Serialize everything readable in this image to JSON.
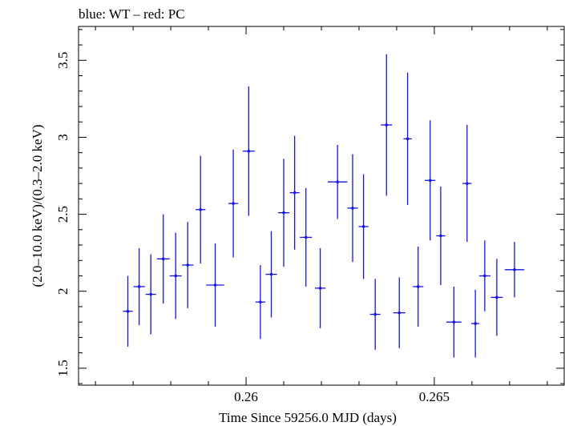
{
  "chart_data": {
    "type": "scatter",
    "title": "blue: WT – red: PC",
    "xlabel": "Time Since 59256.0 MJD (days)",
    "ylabel": "(2.0–10.0 keV)/(0.3–2.0 keV)",
    "xlim": [
      0.25555,
      0.26845
    ],
    "ylim": [
      1.39,
      3.72
    ],
    "xticks": [
      {
        "value": 0.26,
        "label": "0.26"
      },
      {
        "value": 0.265,
        "label": "0.265"
      }
    ],
    "xminor": [
      0.256,
      0.257,
      0.258,
      0.259,
      0.261,
      0.262,
      0.263,
      0.264,
      0.266,
      0.267,
      0.268
    ],
    "yticks": [
      {
        "value": 1.5,
        "label": "1.5"
      },
      {
        "value": 2,
        "label": "2"
      },
      {
        "value": 2.5,
        "label": "2.5"
      },
      {
        "value": 3,
        "label": "3"
      },
      {
        "value": 3.5,
        "label": "3.5"
      }
    ],
    "yminor_step": 0.1,
    "grid": false,
    "series": [
      {
        "color": "#1414e6",
        "points": [
          {
            "x": 0.25686,
            "xerr": 0.00013,
            "y": 1.87,
            "yerr": [
              0.23,
              0.23
            ]
          },
          {
            "x": 0.25716,
            "xerr": 0.00015,
            "y": 2.03,
            "yerr": [
              0.25,
              0.25
            ]
          },
          {
            "x": 0.25747,
            "xerr": 0.00014,
            "y": 1.98,
            "yerr": [
              0.26,
              0.26
            ]
          },
          {
            "x": 0.2578,
            "xerr": 0.00017,
            "y": 2.21,
            "yerr": [
              0.29,
              0.29
            ]
          },
          {
            "x": 0.25813,
            "xerr": 0.00016,
            "y": 2.1,
            "yerr": [
              0.28,
              0.28
            ]
          },
          {
            "x": 0.25845,
            "xerr": 0.00015,
            "y": 2.17,
            "yerr": [
              0.28,
              0.28
            ]
          },
          {
            "x": 0.25879,
            "xerr": 0.00013,
            "y": 2.53,
            "yerr": [
              0.35,
              0.35
            ]
          },
          {
            "x": 0.25918,
            "xerr": 0.00024,
            "y": 2.04,
            "yerr": [
              0.27,
              0.27
            ]
          },
          {
            "x": 0.25966,
            "xerr": 0.00013,
            "y": 2.57,
            "yerr": [
              0.35,
              0.35
            ]
          },
          {
            "x": 0.26007,
            "xerr": 0.00016,
            "y": 2.91,
            "yerr": [
              0.42,
              0.42
            ]
          },
          {
            "x": 0.26038,
            "xerr": 0.00013,
            "y": 1.93,
            "yerr": [
              0.24,
              0.24
            ]
          },
          {
            "x": 0.26067,
            "xerr": 0.00015,
            "y": 2.11,
            "yerr": [
              0.28,
              0.28
            ]
          },
          {
            "x": 0.261,
            "xerr": 0.00015,
            "y": 2.51,
            "yerr": [
              0.35,
              0.35
            ]
          },
          {
            "x": 0.26129,
            "xerr": 0.00013,
            "y": 2.64,
            "yerr": [
              0.37,
              0.37
            ]
          },
          {
            "x": 0.26159,
            "xerr": 0.00016,
            "y": 2.35,
            "yerr": [
              0.32,
              0.32
            ]
          },
          {
            "x": 0.26197,
            "xerr": 0.00014,
            "y": 2.02,
            "yerr": [
              0.26,
              0.26
            ]
          },
          {
            "x": 0.26243,
            "xerr": 0.00026,
            "y": 2.71,
            "yerr": [
              0.24,
              0.24
            ]
          },
          {
            "x": 0.26283,
            "xerr": 0.00014,
            "y": 2.54,
            "yerr": [
              0.35,
              0.35
            ]
          },
          {
            "x": 0.26312,
            "xerr": 0.00013,
            "y": 2.42,
            "yerr": [
              0.34,
              0.34
            ]
          },
          {
            "x": 0.26343,
            "xerr": 0.00014,
            "y": 1.85,
            "yerr": [
              0.23,
              0.23
            ]
          },
          {
            "x": 0.26373,
            "xerr": 0.00015,
            "y": 3.08,
            "yerr": [
              0.46,
              0.46
            ]
          },
          {
            "x": 0.26407,
            "xerr": 0.00016,
            "y": 1.86,
            "yerr": [
              0.23,
              0.23
            ]
          },
          {
            "x": 0.26429,
            "xerr": 0.00011,
            "y": 2.99,
            "yerr": [
              0.43,
              0.43
            ]
          },
          {
            "x": 0.26457,
            "xerr": 0.00014,
            "y": 2.03,
            "yerr": [
              0.26,
              0.26
            ]
          },
          {
            "x": 0.26489,
            "xerr": 0.00014,
            "y": 2.72,
            "yerr": [
              0.39,
              0.39
            ]
          },
          {
            "x": 0.26517,
            "xerr": 0.00012,
            "y": 2.36,
            "yerr": [
              0.32,
              0.32
            ]
          },
          {
            "x": 0.26552,
            "xerr": 0.0002,
            "y": 1.8,
            "yerr": [
              0.23,
              0.23
            ]
          },
          {
            "x": 0.26587,
            "xerr": 0.00012,
            "y": 2.7,
            "yerr": [
              0.38,
              0.38
            ]
          },
          {
            "x": 0.26609,
            "xerr": 0.00011,
            "y": 1.79,
            "yerr": [
              0.22,
              0.22
            ]
          },
          {
            "x": 0.26634,
            "xerr": 0.00015,
            "y": 2.1,
            "yerr": [
              0.23,
              0.23
            ]
          },
          {
            "x": 0.26666,
            "xerr": 0.00016,
            "y": 1.96,
            "yerr": [
              0.25,
              0.25
            ]
          },
          {
            "x": 0.26713,
            "xerr": 0.00026,
            "y": 2.14,
            "yerr": [
              0.18,
              0.18
            ]
          }
        ]
      }
    ]
  }
}
